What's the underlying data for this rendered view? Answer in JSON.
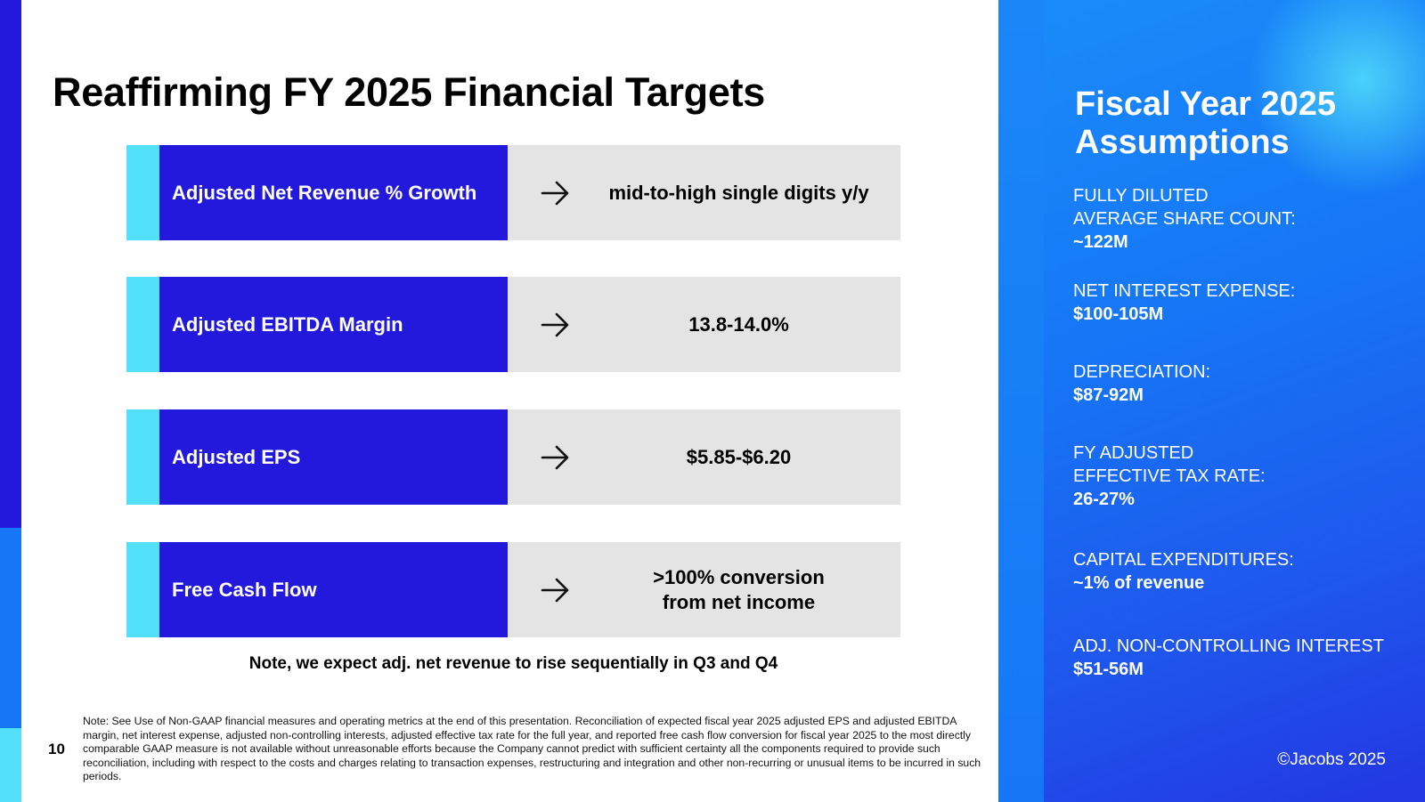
{
  "title": "Reaffirming FY 2025 Financial Targets",
  "targets": [
    {
      "label": "Adjusted Net Revenue % Growth",
      "value_lines": [
        "mid-to-high single digits y/y"
      ]
    },
    {
      "label": "Adjusted EBITDA Margin",
      "value_lines": [
        "13.8-14.0%"
      ]
    },
    {
      "label": "Adjusted EPS",
      "value_lines": [
        "$5.85-$6.20"
      ]
    },
    {
      "label": "Free Cash Flow",
      "value_lines": [
        ">100% conversion",
        "from net income"
      ]
    }
  ],
  "note": "Note, we expect adj. net revenue to rise sequentially in Q3 and Q4",
  "page_number": "10",
  "footnote": "Note: See Use of Non-GAAP financial measures and operating metrics at the end of this presentation. Reconciliation of expected fiscal year 2025 adjusted EPS and adjusted EBITDA margin, net interest expense, adjusted non-controlling interests, adjusted effective tax rate for the full year, and reported free cash flow conversion for fiscal year 2025 to the most directly comparable GAAP measure is not available without unreasonable efforts because the Company cannot predict with sufficient certainty all the components required to provide such reconciliation, including with respect to the costs and charges relating to transaction expenses, restructuring and integration and other non-recurring or unusual items to be incurred in such periods.",
  "side_panel": {
    "title_lines": [
      "Fiscal Year 2025",
      "Assumptions"
    ],
    "assumptions": [
      {
        "label_lines": [
          "FULLY DILUTED",
          "AVERAGE SHARE COUNT:"
        ],
        "value": "~122M"
      },
      {
        "label_lines": [
          "NET INTEREST EXPENSE:"
        ],
        "value": "$100-105M"
      },
      {
        "label_lines": [
          "DEPRECIATION:"
        ],
        "value": "$87-92M"
      },
      {
        "label_lines": [
          "FY ADJUSTED",
          "EFFECTIVE TAX RATE:"
        ],
        "value": "26-27%"
      },
      {
        "label_lines": [
          "CAPITAL EXPENDITURES:"
        ],
        "value": "~1% of revenue"
      },
      {
        "label_lines": [
          "ADJ. NON-CONTROLLING INTEREST"
        ],
        "value": "$51-56M"
      }
    ],
    "copyright": "©Jacobs 2025"
  },
  "icons": {
    "target_arrow": "arrow-right-icon"
  },
  "colors": {
    "label_box": "#2219dc",
    "accent": "#52e0fa",
    "value_box": "#e4e4e4",
    "panel_blue": "#1677f6"
  }
}
